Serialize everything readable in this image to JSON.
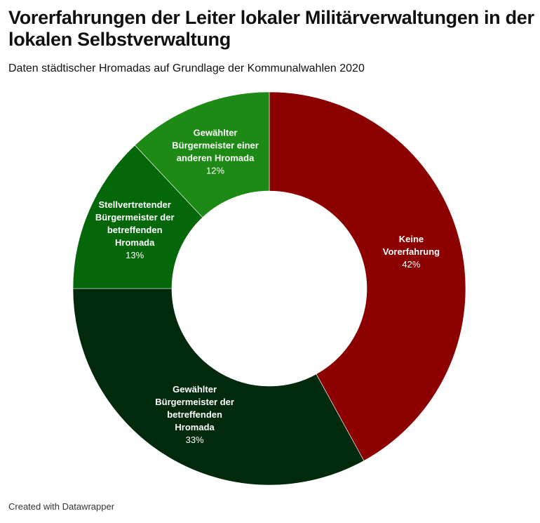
{
  "header": {
    "title": "Vorerfahrungen der Leiter lokaler Militärverwaltungen in der lokalen Selbstverwaltung",
    "subtitle": "Daten städtischer Hromadas auf Grundlage der Kommunalwahlen 2020"
  },
  "footer": {
    "credit": "Created with Datawrapper"
  },
  "chart_data": {
    "type": "pie",
    "donut": true,
    "title": "Vorerfahrungen der Leiter lokaler Militärverwaltungen in der lokalen Selbstverwaltung",
    "subtitle": "Daten städtischer Hromadas auf Grundlage der Kommunalwahlen 2020",
    "slices": [
      {
        "label": "Keine Vorerfahrung",
        "lines": [
          "Keine",
          "Vorerfahrung"
        ],
        "value": 42,
        "display": "42%",
        "color": "#8c0000"
      },
      {
        "label": "Gewählter Bürgermeister der betreffenden Hromada",
        "lines": [
          "Gewählter",
          "Bürgermeister der",
          "betreffenden",
          "Hromada"
        ],
        "value": 33,
        "display": "33%",
        "color": "#01290b"
      },
      {
        "label": "Stellvertretender Bürgermeister der betreffenden Hromada",
        "lines": [
          "Stellvertretender",
          "Bürgermeister der",
          "betreffenden",
          "Hromada"
        ],
        "value": 13,
        "display": "13%",
        "color": "#04680b"
      },
      {
        "label": "Gewählter Bürgermeister einer anderen Hromada",
        "lines": [
          "Gewählter",
          "Bürgermeister einer",
          "anderen Hromada"
        ],
        "value": 12,
        "display": "12%",
        "color": "#1e8a16"
      }
    ]
  }
}
